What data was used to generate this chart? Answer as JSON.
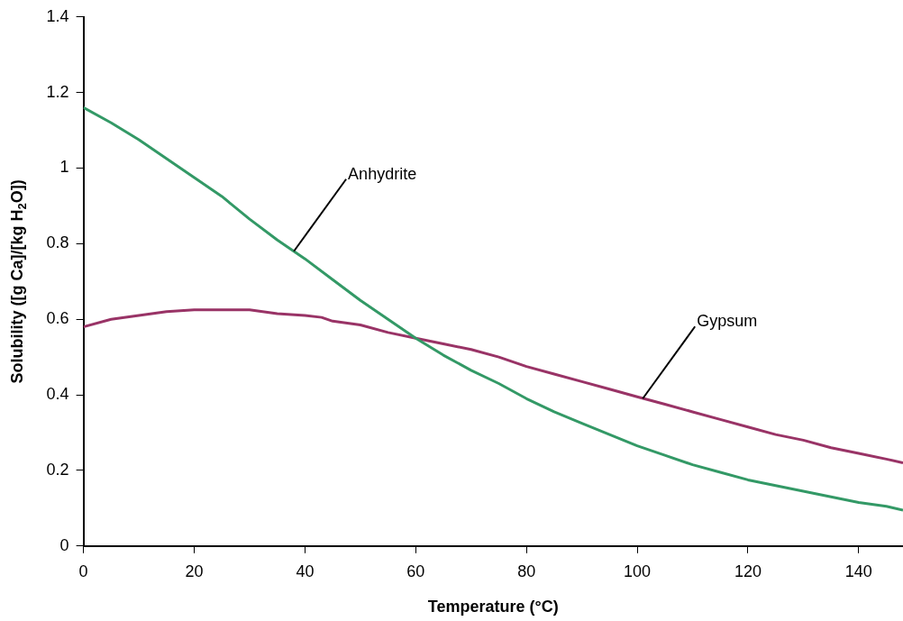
{
  "chart_data": {
    "type": "line",
    "xlabel": "Temperature (°C)",
    "ylabel": "Solubility ([g Ca]/[kg H$_{2}$O])",
    "xlim": [
      0,
      148
    ],
    "xticks": [
      0,
      20,
      40,
      60,
      80,
      100,
      120,
      140
    ],
    "ylim": [
      0,
      1.4
    ],
    "yticks": [
      0,
      0.2,
      0.4,
      0.6,
      0.8,
      1,
      1.2,
      1.4
    ],
    "grid": false,
    "legend": false,
    "marker": "none",
    "line_style": "solid",
    "series": [
      {
        "color": "#339966",
        "x": [
          0,
          5,
          10,
          15,
          20,
          25,
          30,
          35,
          40,
          45,
          50,
          55,
          60,
          65,
          70,
          75,
          80,
          85,
          90,
          95,
          100,
          105,
          110,
          115,
          120,
          125,
          130,
          135,
          140,
          145,
          148
        ],
        "values": [
          1.16,
          1.12,
          1.075,
          1.025,
          0.975,
          0.925,
          0.865,
          0.81,
          0.76,
          0.705,
          0.65,
          0.6,
          0.55,
          0.505,
          0.465,
          0.43,
          0.39,
          0.355,
          0.325,
          0.295,
          0.265,
          0.24,
          0.215,
          0.195,
          0.175,
          0.16,
          0.145,
          0.13,
          0.115,
          0.105,
          0.095
        ]
      },
      {
        "color": "#993366",
        "x": [
          0,
          5,
          10,
          15,
          20,
          25,
          30,
          35,
          40,
          43,
          45,
          50,
          55,
          60,
          65,
          70,
          75,
          80,
          85,
          90,
          95,
          100,
          105,
          110,
          115,
          120,
          125,
          130,
          135,
          140,
          145,
          148
        ],
        "values": [
          0.58,
          0.6,
          0.61,
          0.62,
          0.625,
          0.625,
          0.625,
          0.615,
          0.61,
          0.605,
          0.595,
          0.585,
          0.565,
          0.55,
          0.535,
          0.52,
          0.5,
          0.475,
          0.455,
          0.435,
          0.415,
          0.395,
          0.375,
          0.355,
          0.335,
          0.315,
          0.295,
          0.28,
          0.26,
          0.245,
          0.23,
          0.22
        ]
      }
    ],
    "annotations": [
      {
        "text": "Anhydrite",
        "x": 38,
        "y": 0.78
      },
      {
        "text": "Gypsum",
        "x": 101,
        "y": 0.39
      }
    ]
  }
}
